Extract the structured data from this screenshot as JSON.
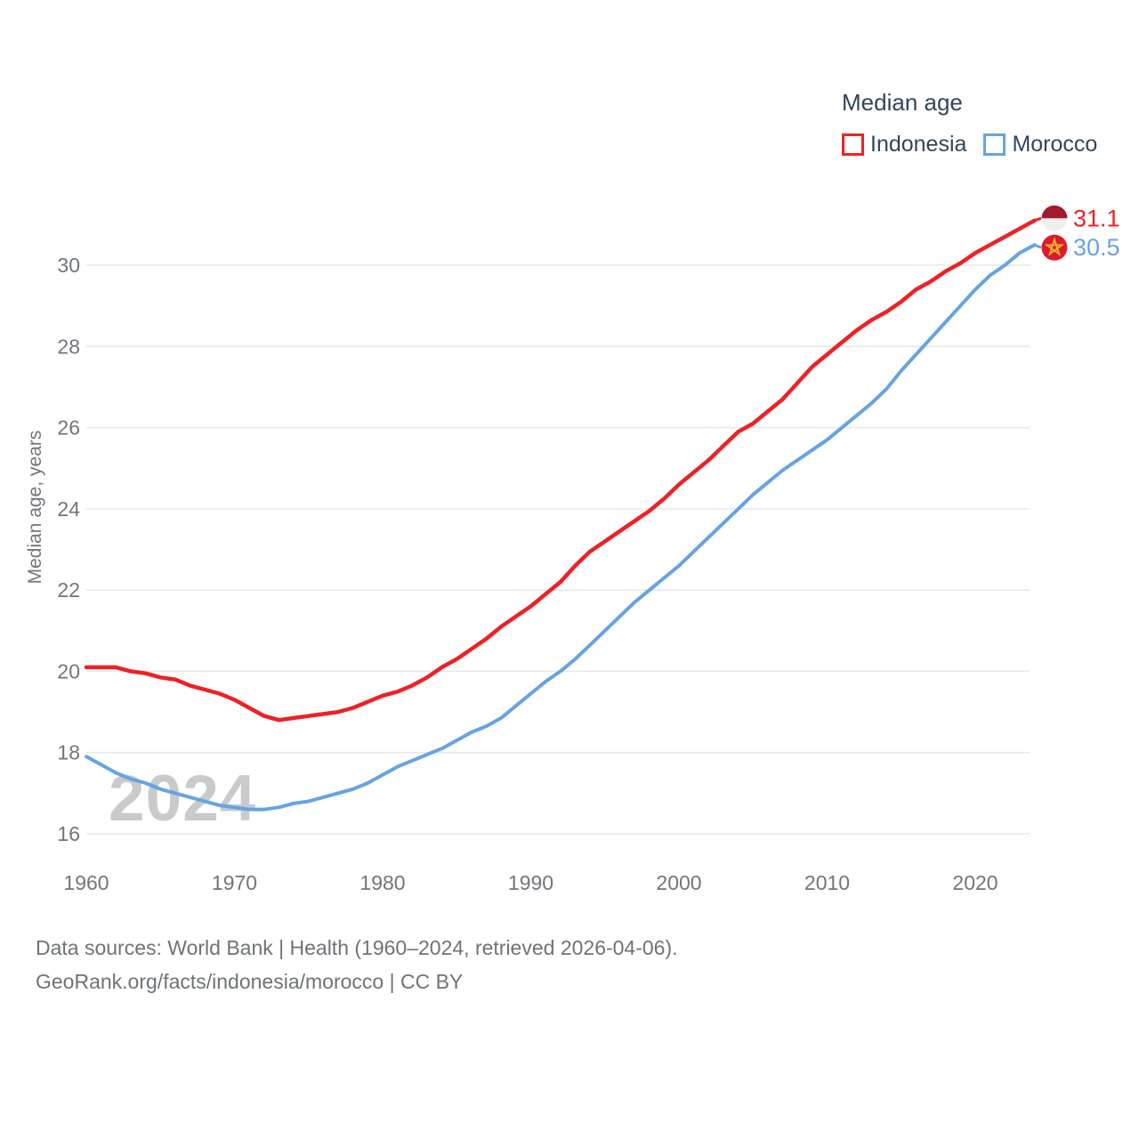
{
  "legend": {
    "title": "Median age",
    "items": [
      {
        "label": "Indonesia",
        "color": "#ee2125"
      },
      {
        "label": "Morocco",
        "color": "#67a3e3"
      }
    ]
  },
  "source": {
    "line1": "Data sources: World Bank | Health (1960–2024, retrieved 2026-04-06).",
    "line2": "GeoRank.org/facts/indonesia/morocco | CC BY"
  },
  "chart_data": {
    "type": "line",
    "title": "Median age",
    "xlabel": "",
    "ylabel": "Median age, years",
    "watermark": "2024",
    "grid": true,
    "legend_position": "top-right",
    "xlim": [
      1960,
      2024
    ],
    "ylim": [
      15.6,
      31.5
    ],
    "x_ticks": [
      1960,
      1970,
      1980,
      1990,
      2000,
      2010,
      2020
    ],
    "y_ticks": [
      16,
      18,
      20,
      22,
      24,
      26,
      28,
      30
    ],
    "x": [
      1960,
      1961,
      1962,
      1963,
      1964,
      1965,
      1966,
      1967,
      1968,
      1969,
      1970,
      1971,
      1972,
      1973,
      1974,
      1975,
      1976,
      1977,
      1978,
      1979,
      1980,
      1981,
      1982,
      1983,
      1984,
      1985,
      1986,
      1987,
      1988,
      1989,
      1990,
      1991,
      1992,
      1993,
      1994,
      1995,
      1996,
      1997,
      1998,
      1999,
      2000,
      2001,
      2002,
      2003,
      2004,
      2005,
      2006,
      2007,
      2008,
      2009,
      2010,
      2011,
      2012,
      2013,
      2014,
      2015,
      2016,
      2017,
      2018,
      2019,
      2020,
      2021,
      2022,
      2023,
      2024
    ],
    "series": [
      {
        "name": "Indonesia",
        "color": "#ee2125",
        "end_label": "31.1",
        "flag": "indonesia",
        "values": [
          20.1,
          20.1,
          20.1,
          20.0,
          19.95,
          19.85,
          19.8,
          19.65,
          19.55,
          19.45,
          19.3,
          19.1,
          18.9,
          18.8,
          18.85,
          18.9,
          18.95,
          19.0,
          19.1,
          19.25,
          19.4,
          19.5,
          19.65,
          19.85,
          20.1,
          20.3,
          20.55,
          20.8,
          21.1,
          21.35,
          21.6,
          21.9,
          22.2,
          22.6,
          22.95,
          23.2,
          23.45,
          23.7,
          23.95,
          24.25,
          24.6,
          24.9,
          25.2,
          25.55,
          25.9,
          26.1,
          26.4,
          26.7,
          27.1,
          27.5,
          27.8,
          28.1,
          28.4,
          28.65,
          28.85,
          29.1,
          29.4,
          29.6,
          29.85,
          30.05,
          30.3,
          30.5,
          30.7,
          30.9,
          31.1
        ]
      },
      {
        "name": "Morocco",
        "color": "#67a3e3",
        "end_label": "30.5",
        "flag": "morocco",
        "values": [
          17.9,
          17.7,
          17.5,
          17.35,
          17.25,
          17.1,
          17.0,
          16.9,
          16.8,
          16.7,
          16.65,
          16.6,
          16.6,
          16.65,
          16.75,
          16.8,
          16.9,
          17.0,
          17.1,
          17.25,
          17.45,
          17.65,
          17.8,
          17.95,
          18.1,
          18.3,
          18.5,
          18.65,
          18.85,
          19.15,
          19.45,
          19.75,
          20.0,
          20.3,
          20.65,
          21.0,
          21.35,
          21.7,
          22.0,
          22.3,
          22.6,
          22.95,
          23.3,
          23.65,
          24.0,
          24.35,
          24.65,
          24.95,
          25.2,
          25.45,
          25.7,
          26.0,
          26.3,
          26.6,
          26.95,
          27.4,
          27.8,
          28.2,
          28.6,
          29.0,
          29.4,
          29.75,
          30.0,
          30.3,
          30.5
        ]
      }
    ],
    "flags": {
      "indonesia": {
        "top": "#a11b2c",
        "bottom": "#efeff0"
      },
      "morocco": {
        "background": "#dd1b2c",
        "star": "#f0b92f"
      }
    }
  },
  "style_colors": {
    "grid": "#e8e9ea",
    "axis_text": "#71767b",
    "watermark": "#c8cacc",
    "legend_text": "#33455c"
  }
}
